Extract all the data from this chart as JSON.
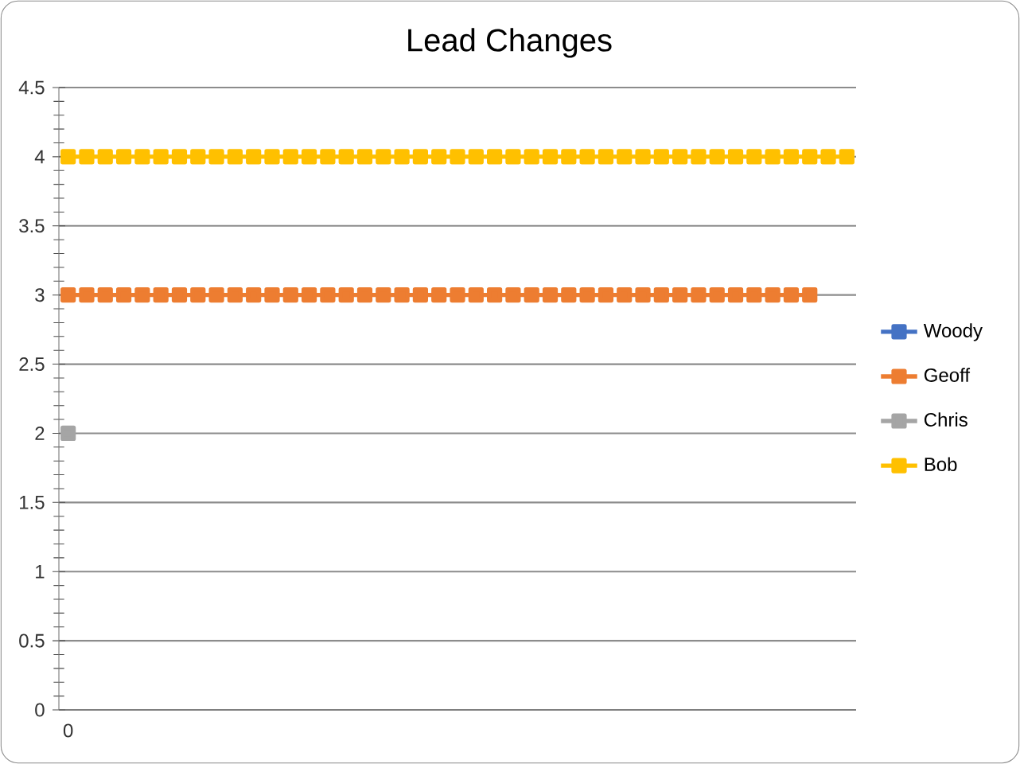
{
  "chart_data": {
    "type": "line",
    "title": "Lead Changes",
    "categories": [
      "0",
      null,
      null,
      null,
      null,
      null,
      null,
      null,
      null,
      null,
      null,
      null,
      null,
      null,
      null,
      null,
      null,
      null,
      null,
      null,
      null,
      null,
      null,
      null,
      null,
      null,
      null,
      null,
      null,
      null,
      null,
      null,
      null,
      null,
      null,
      null,
      null,
      null,
      null,
      null,
      null,
      null,
      null
    ],
    "series": [
      {
        "name": "Woody",
        "color": "#4472c4",
        "values": [
          null,
          null,
          null,
          null,
          null,
          null,
          null,
          null,
          null,
          null,
          null,
          null,
          null,
          null,
          null,
          null,
          null,
          null,
          null,
          null,
          null,
          null,
          null,
          null,
          null,
          null,
          null,
          null,
          null,
          null,
          null,
          null,
          null,
          null,
          null,
          null,
          null,
          null,
          null,
          null,
          null,
          null,
          null
        ]
      },
      {
        "name": "Geoff",
        "color": "#ed7d31",
        "values": [
          3,
          3,
          3,
          3,
          3,
          3,
          3,
          3,
          3,
          3,
          3,
          3,
          3,
          3,
          3,
          3,
          3,
          3,
          3,
          3,
          3,
          3,
          3,
          3,
          3,
          3,
          3,
          3,
          3,
          3,
          3,
          3,
          3,
          3,
          3,
          3,
          3,
          3,
          3,
          3,
          3,
          null,
          null
        ]
      },
      {
        "name": "Chris",
        "color": "#a5a5a5",
        "values": [
          2,
          null,
          null,
          null,
          null,
          null,
          null,
          null,
          null,
          null,
          null,
          null,
          null,
          null,
          null,
          null,
          null,
          null,
          null,
          null,
          null,
          null,
          null,
          null,
          null,
          null,
          null,
          null,
          null,
          null,
          null,
          null,
          null,
          null,
          null,
          null,
          null,
          null,
          null,
          null,
          null,
          null,
          null
        ]
      },
      {
        "name": "Bob",
        "color": "#ffc000",
        "values": [
          4,
          4,
          4,
          4,
          4,
          4,
          4,
          4,
          4,
          4,
          4,
          4,
          4,
          4,
          4,
          4,
          4,
          4,
          4,
          4,
          4,
          4,
          4,
          4,
          4,
          4,
          4,
          4,
          4,
          4,
          4,
          4,
          4,
          4,
          4,
          4,
          4,
          4,
          4,
          4,
          4,
          4,
          4
        ]
      }
    ],
    "ylim": [
      0,
      4.5
    ],
    "yticks": [
      0,
      0.5,
      1,
      1.5,
      2,
      2.5,
      3,
      3.5,
      4,
      4.5
    ],
    "grid": "y",
    "legend": "right",
    "marker": "square",
    "line_style": "solid"
  }
}
